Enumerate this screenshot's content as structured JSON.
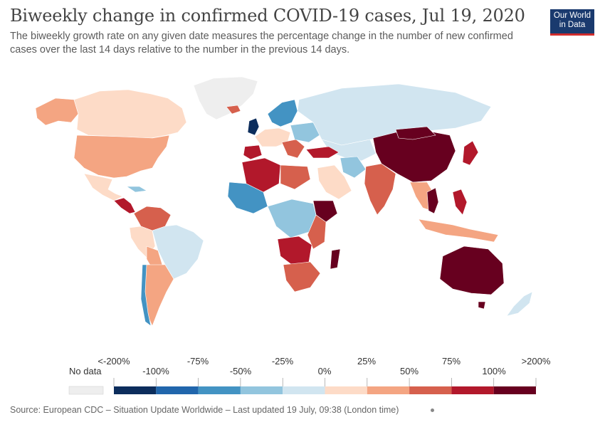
{
  "header": {
    "title": "Biweekly change in confirmed COVID-19 cases, Jul 19, 2020",
    "subtitle_line1": "The biweekly growth rate on any given date measures the percentage change in the number of new confirmed",
    "subtitle_line2": "cases over the last 14 days relative to the number in the previous 14 days."
  },
  "logo": {
    "line1": "Our World",
    "line2": "in Data"
  },
  "legend": {
    "no_data_label": "No data",
    "no_data_color": "#eeeeee",
    "bins": [
      {
        "color": "#0c2d5c"
      },
      {
        "color": "#2166ac"
      },
      {
        "color": "#4393c3"
      },
      {
        "color": "#92c5de"
      },
      {
        "color": "#d1e5f0"
      },
      {
        "color": "#fddbc7"
      },
      {
        "color": "#f4a582"
      },
      {
        "color": "#d6604d"
      },
      {
        "color": "#b2182b"
      },
      {
        "color": "#67001f"
      }
    ],
    "top_labels": [
      "<-200%",
      "-75%",
      "-25%",
      "25%",
      "75%",
      ">200%"
    ],
    "bottom_labels": [
      "-100%",
      "-50%",
      "0%",
      "50%",
      "100%"
    ]
  },
  "footer": {
    "source": "Source: European CDC – Situation Update Worldwide – Last updated 19 July, 09:38 (London time)"
  }
}
